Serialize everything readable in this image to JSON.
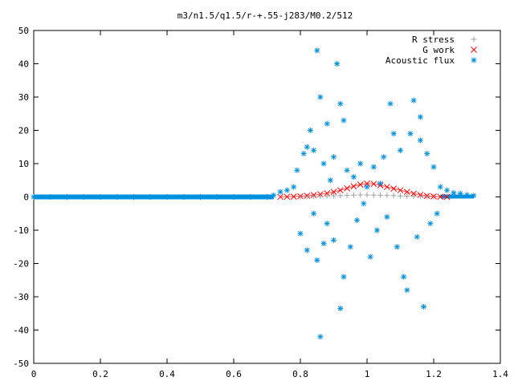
{
  "chart_data": {
    "type": "scatter",
    "title": "m3/n1.5/q1.5/r-+.55-j283/M0.2/512",
    "xlim": [
      0,
      1.4
    ],
    "ylim": [
      -50,
      50
    ],
    "x_ticks": [
      0,
      0.2,
      0.4,
      0.6,
      0.8,
      1,
      1.2,
      1.4
    ],
    "x_tick_labels": [
      "0",
      "0.2",
      "0.4",
      "0.6",
      "0.8",
      "1",
      "1.2",
      "1.4"
    ],
    "y_ticks": [
      -50,
      -40,
      -30,
      -20,
      -10,
      0,
      10,
      20,
      30,
      40,
      50
    ],
    "y_tick_labels": [
      "-50",
      "-40",
      "-30",
      "-20",
      "-10",
      "0",
      "10",
      "20",
      "30",
      "40",
      "50"
    ],
    "grid": false,
    "legend_position": "top-right",
    "series": [
      {
        "name": "R stress",
        "marker": "plus",
        "color": "#a0a0a0",
        "x": [
          0.8,
          0.82,
          0.84,
          0.86,
          0.88,
          0.9,
          0.92,
          0.94,
          0.96,
          0.98,
          1.0,
          1.02,
          1.04,
          1.06,
          1.08,
          1.1,
          1.12,
          1.14,
          1.16,
          1.18,
          1.2
        ],
        "y": [
          0.05,
          0.1,
          0.15,
          0.2,
          0.3,
          0.35,
          0.4,
          0.5,
          0.55,
          0.6,
          0.6,
          0.55,
          0.5,
          0.45,
          0.4,
          0.3,
          0.25,
          0.2,
          0.15,
          0.1,
          0.05
        ]
      },
      {
        "name": "G work",
        "marker": "cross",
        "color": "#ff0000",
        "x": [
          0.74,
          0.76,
          0.78,
          0.8,
          0.82,
          0.84,
          0.86,
          0.88,
          0.9,
          0.92,
          0.94,
          0.96,
          0.98,
          1.0,
          1.02,
          1.04,
          1.06,
          1.08,
          1.1,
          1.12,
          1.14,
          1.16,
          1.18,
          1.2,
          1.22,
          1.24
        ],
        "y": [
          0.02,
          0.05,
          0.1,
          0.2,
          0.35,
          0.55,
          0.8,
          1.1,
          1.5,
          2.0,
          2.6,
          3.2,
          3.7,
          4.0,
          3.9,
          3.5,
          3.0,
          2.5,
          2.0,
          1.5,
          1.0,
          0.6,
          0.3,
          0.15,
          0.05,
          0.02
        ]
      },
      {
        "name": "Acoustic flux",
        "marker": "star",
        "color": "#0090e0",
        "x": [
          0.0,
          0.05,
          0.1,
          0.15,
          0.2,
          0.25,
          0.3,
          0.35,
          0.4,
          0.45,
          0.5,
          0.55,
          0.6,
          0.65,
          0.7,
          0.72,
          0.74,
          0.76,
          0.78,
          0.79,
          0.8,
          0.81,
          0.82,
          0.82,
          0.83,
          0.84,
          0.84,
          0.85,
          0.85,
          0.86,
          0.86,
          0.87,
          0.87,
          0.88,
          0.88,
          0.89,
          0.9,
          0.9,
          0.91,
          0.92,
          0.92,
          0.93,
          0.93,
          0.94,
          0.95,
          0.96,
          0.97,
          0.98,
          0.99,
          1.0,
          1.01,
          1.02,
          1.03,
          1.04,
          1.05,
          1.06,
          1.07,
          1.08,
          1.09,
          1.1,
          1.11,
          1.12,
          1.13,
          1.14,
          1.15,
          1.16,
          1.16,
          1.17,
          1.18,
          1.19,
          1.2,
          1.21,
          1.22,
          1.24,
          1.26,
          1.28,
          1.3,
          1.32
        ],
        "y": [
          0,
          0,
          0,
          0,
          0,
          0,
          0,
          0,
          0,
          0,
          0,
          0,
          0,
          0,
          0,
          0.5,
          1.5,
          2.0,
          3.0,
          8.0,
          -11.0,
          13.0,
          -16.0,
          15.0,
          20.0,
          -5.0,
          14.0,
          44.0,
          -19.0,
          30.0,
          -42.0,
          10.0,
          -14.0,
          22.0,
          -8.0,
          5.0,
          12.0,
          -13.0,
          40.0,
          28.0,
          -33.5,
          23.0,
          -24.0,
          8.0,
          -15.0,
          6.0,
          -7.0,
          10.0,
          -2.0,
          3.0,
          -18.0,
          9.0,
          -10.0,
          4.0,
          12.0,
          -6.0,
          28.0,
          19.0,
          -15.0,
          14.0,
          -24.0,
          -28.0,
          19.0,
          29.0,
          -12.0,
          17.0,
          24.0,
          -33.0,
          13.0,
          -8.0,
          9.0,
          -5.0,
          3.0,
          2.0,
          1.2,
          1.0,
          0.6,
          0.4
        ]
      }
    ]
  }
}
